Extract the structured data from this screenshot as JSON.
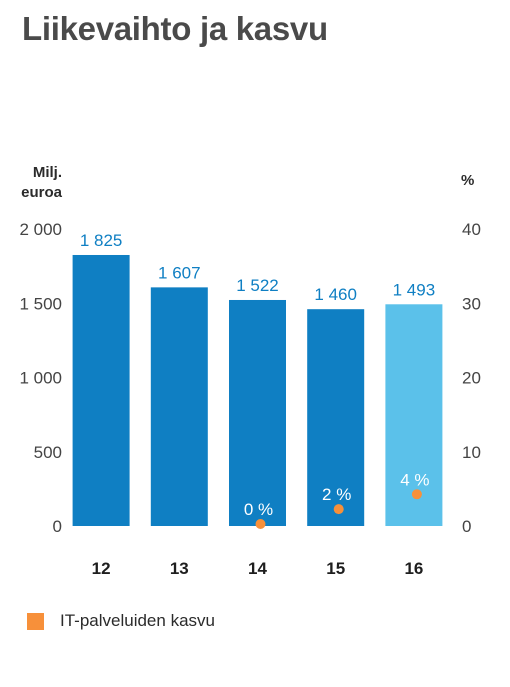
{
  "title": "Liikevaihto ja kasvu",
  "units": {
    "left": "Milj. euroa",
    "right": "%"
  },
  "legend": {
    "label": "IT-palveluiden kasvu",
    "color": "#f7903a"
  },
  "colors": {
    "bar": "#0f7fc3",
    "bar_highlight": "#5bc1ea",
    "growth": "#f7903a",
    "text": "#2b2b2b",
    "axis_text": "#444444"
  },
  "chart_data": {
    "type": "bar",
    "categories": [
      "12",
      "13",
      "14",
      "15",
      "16"
    ],
    "series": [
      {
        "values": [
          1825,
          1607,
          1522,
          1460,
          1493
        ],
        "labels": [
          "1 825",
          "1 607",
          "1 522",
          "1 460",
          "1 493"
        ],
        "highlight": [
          false,
          false,
          false,
          false,
          true
        ]
      },
      {
        "name": "IT-palveluiden kasvu",
        "axis": "right",
        "type": "scatter",
        "categories": [
          "14",
          "15",
          "16"
        ],
        "values": [
          0,
          2,
          4
        ],
        "labels": [
          "0 %",
          "2 %",
          "4 %"
        ]
      }
    ],
    "y_left": {
      "range": [
        0,
        2000
      ],
      "ticks": [
        0,
        500,
        1000,
        1500,
        2000
      ],
      "tick_labels": [
        "0",
        "500",
        "1 000",
        "1 500",
        "2 000"
      ]
    },
    "y_right": {
      "range": [
        0,
        40
      ],
      "ticks": [
        0,
        10,
        20,
        30,
        40
      ],
      "tick_labels": [
        "0",
        "10",
        "20",
        "30",
        "40"
      ]
    },
    "grid": false
  }
}
